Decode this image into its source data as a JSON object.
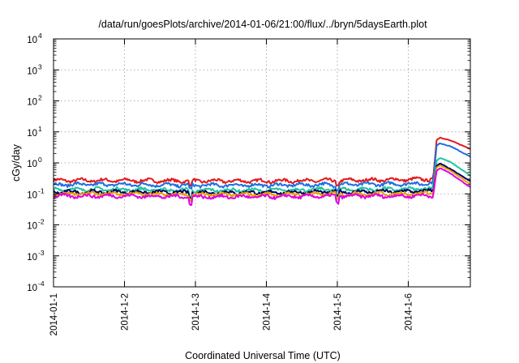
{
  "chart_data": {
    "type": "line",
    "title": "/data/run/goesPlots/archive/2014-01-06/21:00/flux/../bryn/5daysEarth.plot",
    "xlabel": "Coordinated Universal Time (UTC)",
    "ylabel": "cGy/day",
    "yscale": "log",
    "ylim": [
      0.0001,
      10000
    ],
    "xlim": [
      "2014-01-01",
      "2014-01-06 21:00"
    ],
    "x_ticks": [
      "2014-01-1",
      "2014-1-2",
      "2014-1-3",
      "2014-1-4",
      "2014-1-5",
      "2014-1-6"
    ],
    "y_ticks": [
      {
        "base": "10",
        "exp": "-4"
      },
      {
        "base": "10",
        "exp": "-3"
      },
      {
        "base": "10",
        "exp": "-2"
      },
      {
        "base": "10",
        "exp": "-1"
      },
      {
        "base": "10",
        "exp": "0"
      },
      {
        "base": "10",
        "exp": "1"
      },
      {
        "base": "10",
        "exp": "2"
      },
      {
        "base": "10",
        "exp": "3"
      },
      {
        "base": "10",
        "exp": "4"
      }
    ],
    "grid": true,
    "legend": "none",
    "series": [
      {
        "color": "#e41a1c",
        "baseline": 0.27,
        "x": [
          0,
          1,
          2,
          3,
          4,
          5,
          5.35,
          5.4,
          5.45,
          5.6,
          5.88
        ],
        "y": [
          0.27,
          0.27,
          0.26,
          0.26,
          0.27,
          0.29,
          0.3,
          5.5,
          6.6,
          5.2,
          2.8
        ]
      },
      {
        "color": "#1f6fe0",
        "baseline": 0.2,
        "x": [
          0,
          1,
          2,
          3,
          4,
          5,
          5.35,
          5.4,
          5.45,
          5.6,
          5.88
        ],
        "y": [
          0.2,
          0.2,
          0.19,
          0.19,
          0.2,
          0.21,
          0.22,
          3.6,
          4.3,
          3.4,
          1.55
        ]
      },
      {
        "color": "#20c5a0",
        "baseline": 0.14,
        "x": [
          0,
          1,
          2,
          3,
          4,
          5,
          5.35,
          5.4,
          5.45,
          5.6,
          5.88
        ],
        "y": [
          0.14,
          0.14,
          0.13,
          0.13,
          0.14,
          0.14,
          0.15,
          1.2,
          1.45,
          1.05,
          0.38
        ]
      },
      {
        "color": "#000060",
        "baseline": 0.115,
        "x": [
          0,
          1,
          2,
          3,
          4,
          5,
          5.35,
          5.4,
          5.45,
          5.6,
          5.88
        ],
        "y": [
          0.115,
          0.115,
          0.11,
          0.11,
          0.115,
          0.12,
          0.125,
          0.8,
          0.95,
          0.62,
          0.25
        ]
      },
      {
        "color": "#e8a000",
        "baseline": 0.1,
        "x": [
          0,
          1,
          2,
          3,
          4,
          5,
          5.35,
          5.4,
          5.45,
          5.6,
          5.88
        ],
        "y": [
          0.1,
          0.1,
          0.095,
          0.095,
          0.1,
          0.1,
          0.105,
          0.72,
          0.82,
          0.55,
          0.2
        ]
      },
      {
        "color": "#e000e0",
        "baseline": 0.085,
        "x": [
          0,
          1,
          2,
          3,
          4,
          5,
          5.35,
          5.4,
          5.45,
          5.6,
          5.88
        ],
        "y": [
          0.085,
          0.085,
          0.08,
          0.08,
          0.085,
          0.085,
          0.09,
          0.55,
          0.68,
          0.45,
          0.16
        ]
      }
    ]
  }
}
